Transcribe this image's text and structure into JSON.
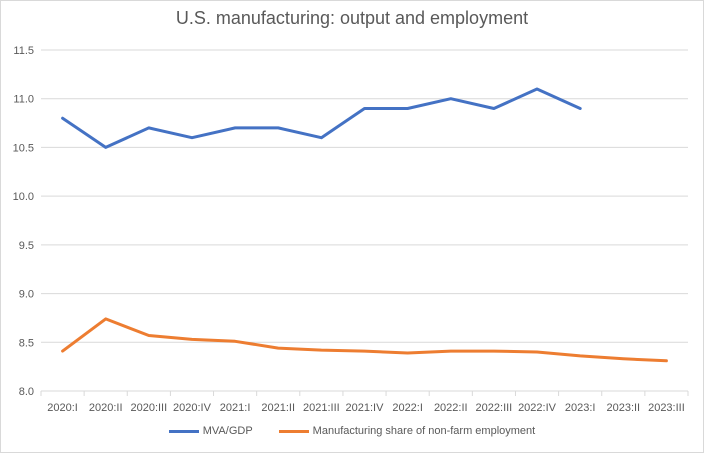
{
  "chart_data": {
    "type": "line",
    "title": "U.S. manufacturing: output and employment",
    "xlabel": "",
    "ylabel": "",
    "ylim": [
      8.0,
      11.5
    ],
    "yticks": [
      "8.0",
      "8.5",
      "9.0",
      "9.5",
      "10.0",
      "10.5",
      "11.0",
      "11.5"
    ],
    "grid": true,
    "legend_position": "bottom",
    "categories": [
      "2020:I",
      "2020:II",
      "2020:III",
      "2020:IV",
      "2021:I",
      "2021:II",
      "2021:III",
      "2021:IV",
      "2022:I",
      "2022:II",
      "2022:III",
      "2022:IV",
      "2023:I",
      "2023:II",
      "2023:III"
    ],
    "series": [
      {
        "name": "MVA/GDP",
        "color": "#4472c4",
        "values": [
          10.8,
          10.5,
          10.7,
          10.6,
          10.7,
          10.7,
          10.6,
          10.9,
          10.9,
          11.0,
          10.9,
          11.1,
          10.9,
          null,
          null
        ]
      },
      {
        "name": "Manufacturing share of non-farm employment",
        "color": "#ed7d31",
        "values": [
          8.41,
          8.74,
          8.57,
          8.53,
          8.51,
          8.44,
          8.42,
          8.41,
          8.39,
          8.41,
          8.41,
          8.4,
          8.36,
          8.33,
          8.31
        ]
      }
    ]
  }
}
